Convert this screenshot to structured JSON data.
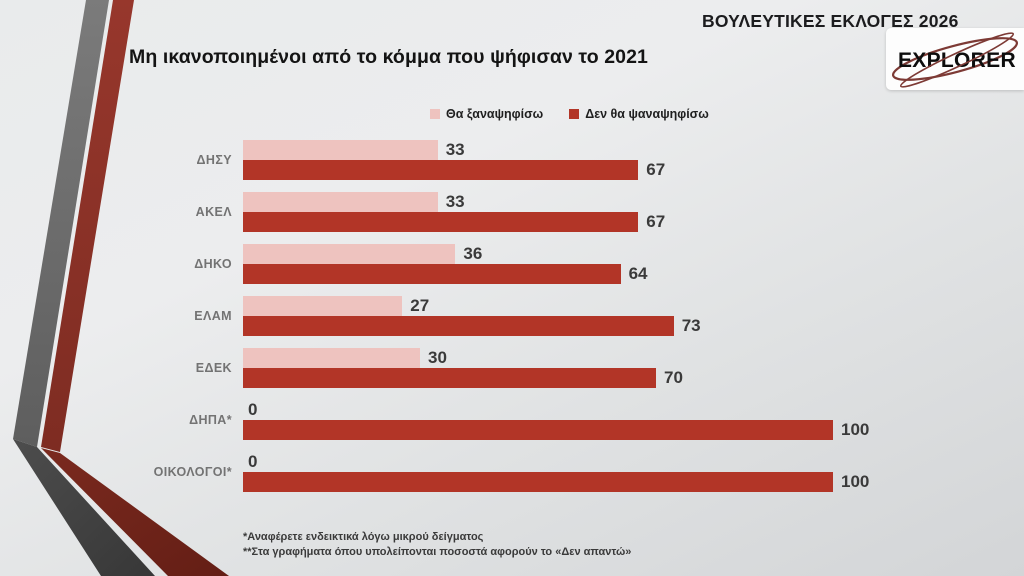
{
  "header": {
    "election_label": "ΒΟΥΛΕΥΤΙΚΕΣ ΕΚΛΟΓΕΣ 2026",
    "logo_text": "EXPLORER"
  },
  "title": "Μη ικανοποιημένοι από το κόμμα που ψήφισαν το 2021",
  "chart_data": {
    "type": "bar",
    "orientation": "horizontal",
    "title": "Μη ικανοποιημένοι από το κόμμα που ψήφισαν το 2021",
    "categories": [
      "ΔΗΣΥ",
      "ΑΚΕΛ",
      "ΔΗΚΟ",
      "ΕΛΑΜ",
      "ΕΔΕΚ",
      "ΔΗΠΑ*",
      "ΟΙΚΟΛΟΓΟΙ*"
    ],
    "series": [
      {
        "name": "Θα ξαναψηφίσω",
        "color": "#eec3bf",
        "values": [
          33,
          33,
          36,
          27,
          30,
          0,
          0
        ]
      },
      {
        "name": "Δεν θα ψαναψηφίσω",
        "color": "#b23527",
        "values": [
          67,
          67,
          64,
          73,
          70,
          100,
          100
        ]
      }
    ],
    "xlim": [
      0,
      100
    ],
    "grid": false,
    "legend_position": "top-center",
    "value_labels": true
  },
  "footnotes": [
    "*Αναφέρετε ενδεικτικά λόγω μικρού δείγματος",
    "**Στα γραφήματα όπου υπολείπονται ποσοστά αφορούν το «Δεν απαντώ»"
  ],
  "colors": {
    "value_label": "#3a3a3a",
    "category_label": "#737373",
    "ribbon_gray_top": "#6f6f6f",
    "ribbon_gray_bottom": "#424242",
    "ribbon_red_top": "#8e3128",
    "ribbon_red_bottom": "#70251b",
    "logo_swoosh": "#7d3a35"
  }
}
